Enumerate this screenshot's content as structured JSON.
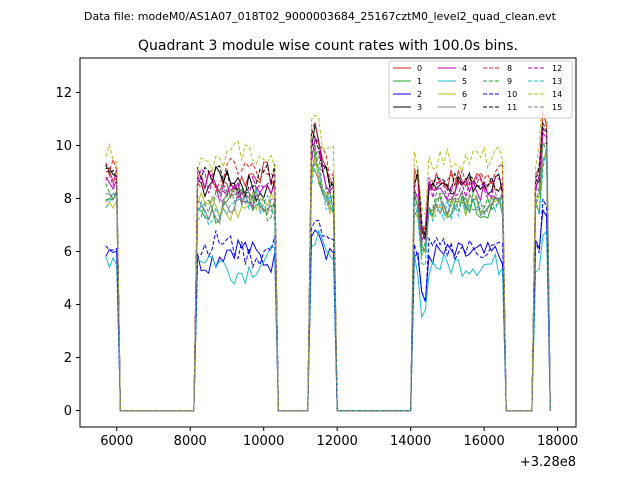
{
  "suptitle": "Data file: modeM0/AS1A07_018T02_9000003684_25167cztM0_level2_quad_clean.evt",
  "chart_data": {
    "type": "line",
    "title": "Quadrant 3 module wise count rates with 100.0s bins.",
    "xlabel": "",
    "ylabel": "",
    "x_offset_label": "+3.28e8",
    "xlim": [
      5000,
      18500
    ],
    "ylim": [
      -0.62,
      13.3
    ],
    "xticks": [
      6000,
      8000,
      10000,
      12000,
      14000,
      16000,
      18000
    ],
    "yticks": [
      0,
      2,
      4,
      6,
      8,
      10,
      12
    ],
    "legend_position": "upper right",
    "grid": false,
    "segments": [
      {
        "start": 5700,
        "end": 6000,
        "shape": "initial"
      },
      {
        "start": 8200,
        "end": 10300,
        "shape": "plateau"
      },
      {
        "start": 11300,
        "end": 11900,
        "shape": "peak"
      },
      {
        "start": 14100,
        "end": 16500,
        "shape": "dip"
      },
      {
        "start": 17400,
        "end": 17750,
        "shape": "spike"
      }
    ],
    "gaps_value": 0,
    "series": [
      {
        "name": "0",
        "level": 8.8,
        "color": "#d62728",
        "dash": "solid"
      },
      {
        "name": "1",
        "level": 7.8,
        "color": "#2ca02c",
        "dash": "solid"
      },
      {
        "name": "2",
        "level": 6.0,
        "color": "#0000ff",
        "dash": "solid"
      },
      {
        "name": "3",
        "level": 8.7,
        "color": "#000000",
        "dash": "solid"
      },
      {
        "name": "4",
        "level": 8.4,
        "color": "#bf00bf",
        "dash": "solid"
      },
      {
        "name": "5",
        "level": 5.6,
        "color": "#17becf",
        "dash": "solid"
      },
      {
        "name": "6",
        "level": 7.8,
        "color": "#bcbd22",
        "dash": "solid"
      },
      {
        "name": "7",
        "level": 7.9,
        "color": "#7f7f7f",
        "dash": "solid"
      },
      {
        "name": "8",
        "level": 9.0,
        "color": "#d62728",
        "dash": "dashed"
      },
      {
        "name": "9",
        "level": 8.0,
        "color": "#2ca02c",
        "dash": "dashed"
      },
      {
        "name": "10",
        "level": 6.2,
        "color": "#0000ff",
        "dash": "dashed"
      },
      {
        "name": "11",
        "level": 8.8,
        "color": "#000000",
        "dash": "dashed"
      },
      {
        "name": "12",
        "level": 8.5,
        "color": "#bf00bf",
        "dash": "dashed"
      },
      {
        "name": "13",
        "level": 7.7,
        "color": "#17becf",
        "dash": "dashed"
      },
      {
        "name": "14",
        "level": 9.6,
        "color": "#bcbd22",
        "dash": "dashed"
      },
      {
        "name": "15",
        "level": 8.0,
        "color": "#7f7f7f",
        "dash": "dashed"
      }
    ]
  }
}
